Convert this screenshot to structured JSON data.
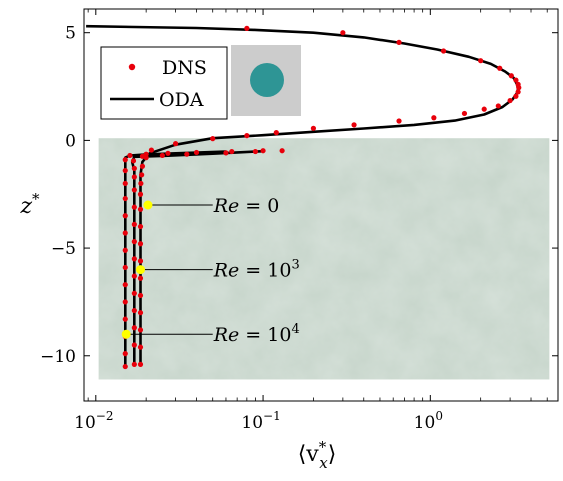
{
  "chart_data": {
    "type": "line",
    "xscale": "log",
    "xlim": [
      0.0085,
      5.8
    ],
    "ylim": [
      -12.1,
      6.1
    ],
    "xlabel_base": "⟨v",
    "xlabel_sub": "x",
    "xlabel_sup": "*",
    "xlabel_end": "⟩",
    "ylabel_base": "z",
    "ylabel_sup": "*",
    "x_ticks": [
      {
        "value": 0.01,
        "base": "10",
        "exp": "−2"
      },
      {
        "value": 0.1,
        "base": "10",
        "exp": "−1"
      },
      {
        "value": 1,
        "base": "10",
        "exp": "0"
      }
    ],
    "y_ticks": [
      {
        "value": 5,
        "label": "5"
      },
      {
        "value": 0,
        "label": "0"
      },
      {
        "value": -5,
        "label": "−5"
      },
      {
        "value": -10,
        "label": "−10"
      }
    ],
    "colors": {
      "dns": "#e8000b",
      "oda": "#000000",
      "marker": "#ffff00",
      "porous_bg": "#c8d6cc",
      "inset_bg": "#cccccc",
      "inset_circle": "#2e9595"
    },
    "porous_region": {
      "x_range": [
        0.0104,
        5.15
      ],
      "z_range": [
        -11.1,
        0.1
      ]
    },
    "legend": {
      "position": "top-left",
      "entries": [
        {
          "label": "DNS",
          "style": "dot",
          "color": "#e8000b"
        },
        {
          "label": "ODA",
          "style": "line",
          "color": "#000000"
        }
      ]
    },
    "series": [
      {
        "name": "ODA",
        "style": "line",
        "points": [
          [
            0.00875,
            5.3
          ],
          [
            0.04,
            5.22
          ],
          [
            0.09,
            5.13
          ],
          [
            0.2,
            5.0
          ],
          [
            0.4,
            4.78
          ],
          [
            0.7,
            4.5
          ],
          [
            1.1,
            4.22
          ],
          [
            1.7,
            3.88
          ],
          [
            2.3,
            3.55
          ],
          [
            2.8,
            3.2
          ],
          [
            3.15,
            2.9
          ],
          [
            3.3,
            2.6
          ],
          [
            3.35,
            2.4
          ],
          [
            3.3,
            2.2
          ],
          [
            3.1,
            1.9
          ],
          [
            2.7,
            1.55
          ],
          [
            2.1,
            1.2
          ],
          [
            1.4,
            0.92
          ],
          [
            0.8,
            0.72
          ],
          [
            0.4,
            0.55
          ],
          [
            0.2,
            0.4
          ],
          [
            0.1,
            0.24
          ],
          [
            0.05,
            0.1
          ],
          [
            0.03,
            -0.2
          ],
          [
            0.021,
            -0.6
          ],
          [
            0.019,
            -1.0
          ],
          [
            0.0185,
            -1.6
          ],
          [
            0.0185,
            -2.5
          ],
          [
            0.0185,
            -10.5
          ]
        ]
      },
      {
        "name": "ODA",
        "style": "line",
        "points": [
          [
            0.1,
            -0.5
          ],
          [
            0.05,
            -0.62
          ],
          [
            0.025,
            -0.72
          ],
          [
            0.017,
            -0.76
          ],
          [
            0.0165,
            -1.0
          ],
          [
            0.017,
            -1.4
          ],
          [
            0.017,
            -2.0
          ],
          [
            0.017,
            -10.5
          ]
        ]
      },
      {
        "name": "ODA",
        "style": "line",
        "points": [
          [
            0.06,
            -0.52
          ],
          [
            0.03,
            -0.6
          ],
          [
            0.02,
            -0.65
          ],
          [
            0.016,
            -0.7
          ],
          [
            0.015,
            -0.8
          ],
          [
            0.015,
            -1.2
          ],
          [
            0.015,
            -10.5
          ]
        ]
      },
      {
        "name": "DNS",
        "style": "dot",
        "points": [
          [
            0.08,
            5.2
          ],
          [
            0.3,
            5.0
          ],
          [
            0.65,
            4.55
          ],
          [
            1.2,
            4.15
          ],
          [
            2.0,
            3.7
          ],
          [
            2.6,
            3.35
          ],
          [
            3.05,
            3.0
          ],
          [
            3.25,
            2.8
          ],
          [
            3.35,
            2.6
          ],
          [
            3.38,
            2.45
          ],
          [
            3.35,
            2.25
          ],
          [
            3.25,
            2.05
          ],
          [
            3.0,
            1.85
          ],
          [
            2.55,
            1.6
          ],
          [
            2.1,
            1.45
          ],
          [
            1.6,
            1.25
          ],
          [
            1.05,
            1.05
          ],
          [
            0.65,
            0.9
          ],
          [
            0.35,
            0.72
          ],
          [
            0.2,
            0.56
          ],
          [
            0.12,
            0.36
          ],
          [
            0.08,
            0.22
          ],
          [
            0.05,
            0.08
          ],
          [
            0.03,
            -0.15
          ],
          [
            0.0215,
            -0.45
          ],
          [
            0.02,
            -0.8
          ],
          [
            0.019,
            -1.2
          ],
          [
            0.0188,
            -1.6
          ],
          [
            0.0186,
            -2.0
          ],
          [
            0.0185,
            -2.5
          ],
          [
            0.0185,
            -3.2
          ],
          [
            0.0185,
            -4.0
          ],
          [
            0.0185,
            -4.8
          ],
          [
            0.0185,
            -5.6
          ],
          [
            0.0185,
            -6.4
          ],
          [
            0.0185,
            -7.2
          ],
          [
            0.0185,
            -8.0
          ],
          [
            0.0185,
            -8.8
          ],
          [
            0.0185,
            -9.6
          ],
          [
            0.0185,
            -10.4
          ],
          [
            0.13,
            -0.48
          ],
          [
            0.09,
            -0.52
          ],
          [
            0.06,
            -0.58
          ],
          [
            0.035,
            -0.64
          ],
          [
            0.025,
            -0.7
          ],
          [
            0.019,
            -0.74
          ],
          [
            0.0168,
            -0.95
          ],
          [
            0.017,
            -1.3
          ],
          [
            0.017,
            -1.7
          ],
          [
            0.017,
            -2.3
          ],
          [
            0.017,
            -3.1
          ],
          [
            0.017,
            -3.9
          ],
          [
            0.017,
            -4.7
          ],
          [
            0.017,
            -5.5
          ],
          [
            0.017,
            -6.3
          ],
          [
            0.017,
            -7.1
          ],
          [
            0.017,
            -7.9
          ],
          [
            0.017,
            -8.7
          ],
          [
            0.017,
            -9.5
          ],
          [
            0.017,
            -10.4
          ],
          [
            0.1,
            -0.48
          ],
          [
            0.065,
            -0.52
          ],
          [
            0.04,
            -0.56
          ],
          [
            0.027,
            -0.6
          ],
          [
            0.02,
            -0.64
          ],
          [
            0.016,
            -0.7
          ],
          [
            0.015,
            -0.9
          ],
          [
            0.015,
            -1.4
          ],
          [
            0.015,
            -2.0
          ],
          [
            0.015,
            -2.7
          ],
          [
            0.015,
            -3.5
          ],
          [
            0.015,
            -4.3
          ],
          [
            0.015,
            -5.1
          ],
          [
            0.015,
            -5.9
          ],
          [
            0.015,
            -6.7
          ],
          [
            0.015,
            -7.5
          ],
          [
            0.015,
            -8.3
          ],
          [
            0.015,
            -9.1
          ],
          [
            0.015,
            -9.9
          ],
          [
            0.015,
            -10.5
          ]
        ]
      }
    ],
    "annotations": [
      {
        "label_italic": "Re",
        "label_rest": " = 0",
        "sup": "",
        "marker": [
          0.0205,
          -3.0
        ],
        "text_x": 0.05,
        "text_z": -3.0
      },
      {
        "label_italic": "Re",
        "label_rest": " = 10",
        "sup": "3",
        "marker": [
          0.0185,
          -6.0
        ],
        "text_x": 0.05,
        "text_z": -6.0
      },
      {
        "label_italic": "Re",
        "label_rest": " = 10",
        "sup": "4",
        "marker": [
          0.0152,
          -9.0
        ],
        "text_x": 0.05,
        "text_z": -9.0
      }
    ]
  }
}
